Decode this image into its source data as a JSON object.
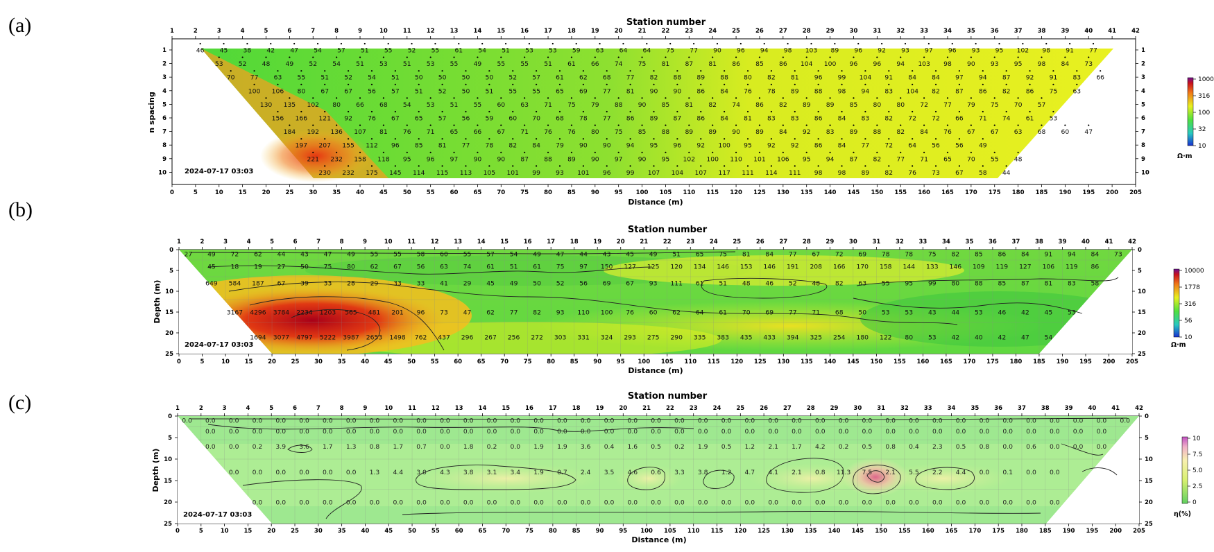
{
  "figure": {
    "panel_labels": [
      "(a)",
      "(b)",
      "(c)"
    ]
  },
  "chart_data": [
    {
      "type": "heatmap",
      "panel": "(a)",
      "title": "Station number",
      "xlabel": "Distance (m)",
      "ylabel": "n spacing",
      "timestamp": "2024-07-17 03:03",
      "x_range": [
        0,
        205
      ],
      "y_range": [
        1,
        10
      ],
      "station_spacing_m": 5,
      "stations": [
        1,
        42
      ],
      "colorbar": {
        "unit": "Ω·m",
        "ticks": [
          "1000",
          "316",
          "100",
          "32",
          "10"
        ],
        "scale": "log"
      },
      "rows": [
        {
          "n": 1,
          "start_station": 2,
          "values": [
            46,
            45,
            38,
            42,
            47,
            54,
            57,
            51,
            55,
            52,
            55,
            61,
            54,
            51,
            53,
            53,
            59,
            63,
            64,
            64,
            75,
            77,
            90,
            96,
            94,
            98,
            103,
            89,
            96,
            92,
            93,
            97,
            96,
            93,
            95,
            102,
            98,
            91,
            77
          ]
        },
        {
          "n": 2,
          "start_station": 2.5,
          "values": [
            53,
            52,
            48,
            49,
            52,
            54,
            51,
            53,
            51,
            53,
            55,
            49,
            55,
            55,
            51,
            61,
            66,
            74,
            75,
            81,
            87,
            81,
            86,
            85,
            86,
            104,
            100,
            96,
            96,
            94,
            103,
            98,
            90,
            93,
            95,
            98,
            84,
            73
          ]
        },
        {
          "n": 3,
          "start_station": 3,
          "values": [
            70,
            77,
            63,
            55,
            51,
            52,
            54,
            51,
            50,
            50,
            50,
            50,
            52,
            57,
            61,
            62,
            68,
            77,
            82,
            88,
            89,
            88,
            80,
            82,
            81,
            96,
            99,
            104,
            91,
            84,
            84,
            97,
            94,
            87,
            92,
            91,
            83,
            66
          ]
        },
        {
          "n": 4,
          "start_station": 4,
          "values": [
            100,
            106,
            80,
            67,
            67,
            56,
            57,
            51,
            52,
            50,
            51,
            55,
            55,
            65,
            69,
            77,
            81,
            90,
            90,
            86,
            84,
            76,
            78,
            89,
            88,
            98,
            94,
            83,
            104,
            82,
            87,
            86,
            82,
            86,
            75,
            63
          ]
        },
        {
          "n": 5,
          "start_station": 4.5,
          "values": [
            130,
            135,
            102,
            80,
            66,
            68,
            54,
            53,
            51,
            55,
            60,
            63,
            71,
            75,
            79,
            88,
            90,
            85,
            81,
            82,
            74,
            86,
            82,
            89,
            89,
            85,
            80,
            80,
            72,
            77,
            79,
            75,
            70,
            57
          ]
        },
        {
          "n": 6,
          "start_station": 5,
          "values": [
            156,
            166,
            121,
            92,
            76,
            67,
            65,
            57,
            56,
            59,
            60,
            70,
            68,
            78,
            77,
            86,
            89,
            87,
            86,
            84,
            81,
            83,
            83,
            86,
            84,
            83,
            82,
            72,
            72,
            66,
            71,
            74,
            61,
            53
          ]
        },
        {
          "n": 7,
          "start_station": 5.5,
          "values": [
            184,
            192,
            136,
            107,
            81,
            76,
            71,
            65,
            66,
            67,
            71,
            76,
            76,
            80,
            75,
            85,
            88,
            89,
            89,
            90,
            89,
            84,
            92,
            83,
            89,
            88,
            82,
            84,
            76,
            67,
            67,
            63,
            68,
            60,
            47
          ]
        },
        {
          "n": 8,
          "start_station": 6,
          "values": [
            197,
            207,
            155,
            112,
            96,
            85,
            81,
            77,
            78,
            82,
            84,
            79,
            90,
            90,
            94,
            95,
            96,
            92,
            100,
            95,
            92,
            92,
            86,
            84,
            77,
            72,
            64,
            56,
            56,
            49
          ]
        },
        {
          "n": 9,
          "start_station": 6.5,
          "values": [
            221,
            232,
            158,
            118,
            95,
            96,
            97,
            90,
            90,
            87,
            88,
            89,
            90,
            97,
            90,
            95,
            102,
            100,
            110,
            101,
            106,
            95,
            94,
            87,
            82,
            77,
            71,
            65,
            70,
            55,
            48
          ]
        },
        {
          "n": 10,
          "start_station": 7,
          "values": [
            230,
            232,
            175,
            145,
            114,
            115,
            113,
            105,
            101,
            99,
            93,
            101,
            96,
            99,
            107,
            104,
            107,
            117,
            111,
            114,
            111,
            98,
            98,
            89,
            82,
            76,
            73,
            67,
            58,
            44
          ]
        }
      ]
    },
    {
      "type": "heatmap",
      "panel": "(b)",
      "title": "Station number",
      "xlabel": "Distance (m)",
      "ylabel": "Depth (m)",
      "timestamp": "2024-07-17 03:03",
      "x_range": [
        0,
        205
      ],
      "y_range": [
        0,
        25
      ],
      "colorbar": {
        "unit": "Ω·m",
        "ticks": [
          "10000",
          "1778",
          "316",
          "56",
          "10"
        ],
        "scale": "log"
      },
      "rows": [
        {
          "depth": 1,
          "start_x": 2,
          "values": [
            27,
            49,
            72,
            62,
            44,
            43,
            47,
            49,
            55,
            55,
            58,
            60,
            55,
            57,
            54,
            49,
            47,
            44,
            43,
            45,
            49,
            51,
            65,
            75,
            81,
            84,
            77,
            67,
            72,
            69,
            78,
            78,
            75,
            82,
            85,
            86,
            84,
            91,
            94,
            84,
            73
          ]
        },
        {
          "depth": 4,
          "start_x": 7,
          "values": [
            45,
            18,
            19,
            27,
            50,
            75,
            80,
            62,
            67,
            56,
            63,
            74,
            61,
            51,
            61,
            75,
            97,
            150,
            127,
            125,
            120,
            134,
            146,
            153,
            146,
            191,
            208,
            166,
            170,
            158,
            144,
            133,
            146,
            109,
            119,
            127,
            106,
            119,
            86
          ]
        },
        {
          "depth": 8,
          "start_x": 7,
          "values": [
            649,
            584,
            187,
            67,
            39,
            33,
            28,
            29,
            33,
            33,
            41,
            29,
            45,
            49,
            50,
            52,
            56,
            69,
            67,
            93,
            111,
            61,
            51,
            48,
            46,
            52,
            48,
            82,
            63,
            55,
            95,
            99,
            80,
            88,
            85,
            87,
            81,
            83,
            58
          ]
        },
        {
          "depth": 15,
          "start_x": 12,
          "values": [
            3167,
            4296,
            3784,
            2234,
            1203,
            565,
            481,
            201,
            96,
            73,
            47,
            62,
            77,
            82,
            93,
            110,
            100,
            76,
            60,
            62,
            64,
            61,
            70,
            69,
            77,
            71,
            68,
            50,
            53,
            53,
            43,
            44,
            53,
            46,
            42,
            45,
            53
          ]
        },
        {
          "depth": 21,
          "start_x": 17,
          "values": [
            1694,
            3077,
            4797,
            5222,
            3987,
            2653,
            1498,
            762,
            437,
            296,
            267,
            256,
            272,
            303,
            331,
            324,
            293,
            275,
            290,
            335,
            383,
            435,
            433,
            394,
            325,
            254,
            180,
            122,
            80,
            53,
            42,
            40,
            42,
            47,
            54
          ]
        }
      ]
    },
    {
      "type": "heatmap",
      "panel": "(c)",
      "title": "Station number",
      "xlabel": "Distance (m)",
      "ylabel": "Depth (m)",
      "timestamp": "2024-07-17 03:03",
      "x_range": [
        0,
        205
      ],
      "y_range": [
        0,
        25
      ],
      "colorbar": {
        "unit": "η(%)",
        "ticks": [
          "10",
          "7.5",
          "5.0",
          "2.5",
          "0"
        ],
        "scale": "linear"
      },
      "rows": [
        {
          "depth": 1,
          "start_x": 2,
          "values": [
            "0.0",
            "0.0",
            "0.0",
            "0.0",
            "0.0",
            "0.0",
            "0.0",
            "0.0",
            "0.0",
            "0.0",
            "0.0",
            "0.0",
            "0.0",
            "0.0",
            "0.0",
            "0.0",
            "0.0",
            "0.0",
            "0.0",
            "0.0",
            "0.0",
            "0.0",
            "0.0",
            "0.0",
            "0.0",
            "0.0",
            "0.0",
            "0.0",
            "0.0",
            "0.0",
            "0.0",
            "0.0",
            "0.0",
            "0.0",
            "0.0",
            "0.0",
            "0.0",
            "0.0",
            "0.0",
            "0.0",
            "0.0"
          ]
        },
        {
          "depth": 3.5,
          "start_x": 7,
          "values": [
            "0.0",
            "0.0",
            "0.0",
            "0.0",
            "0.0",
            "0.0",
            "0.0",
            "0.0",
            "0.0",
            "0.0",
            "0.0",
            "0.0",
            "0.0",
            "0.0",
            "0.0",
            "0.0",
            "0.0",
            "0.0",
            "0.0",
            "0.0",
            "0.0",
            "0.0",
            "0.0",
            "0.0",
            "0.0",
            "0.0",
            "0.0",
            "0.0",
            "0.0",
            "0.0",
            "0.0",
            "0.0",
            "0.0",
            "0.0",
            "0.0",
            "0.0",
            "0.0",
            "0.0",
            "0.0"
          ]
        },
        {
          "depth": 7,
          "start_x": 7,
          "values": [
            "0.0",
            "0.0",
            "0.2",
            "3.9",
            "3.6",
            "1.7",
            "1.3",
            "0.8",
            "1.7",
            "0.7",
            "0.0",
            "1.8",
            "0.2",
            "0.0",
            "1.9",
            "1.9",
            "3.6",
            "0.4",
            "1.6",
            "0.5",
            "0.2",
            "1.9",
            "0.5",
            "1.2",
            "2.1",
            "1.7",
            "4.2",
            "0.2",
            "0.5",
            "0.8",
            "0.4",
            "2.3",
            "0.5",
            "0.8",
            "0.0",
            "0.6",
            "0.0",
            "0.0",
            "0.0"
          ]
        },
        {
          "depth": 13,
          "start_x": 12,
          "values": [
            "0.0",
            "0.0",
            "0.0",
            "0.0",
            "0.0",
            "0.0",
            "1.3",
            "4.4",
            "3.0",
            "4.3",
            "3.8",
            "3.1",
            "3.4",
            "1.9",
            "0.7",
            "2.4",
            "3.5",
            "4.6",
            "0.6",
            "3.3",
            "3.8",
            "1.2",
            "4.7",
            "4.1",
            "2.1",
            "0.8",
            "11.3",
            "7.5",
            "2.1",
            "5.5",
            "2.2",
            "4.4",
            "0.0",
            "0.1",
            "0.0",
            "0.0"
          ]
        },
        {
          "depth": 20,
          "start_x": 17,
          "values": [
            "0.0",
            "0.0",
            "0.0",
            "0.0",
            "0.0",
            "0.0",
            "0.0",
            "0.0",
            "0.0",
            "0.0",
            "0.0",
            "0.0",
            "0.0",
            "0.0",
            "0.0",
            "0.0",
            "0.0",
            "0.0",
            "0.0",
            "0.0",
            "0.0",
            "0.0",
            "0.0",
            "0.0",
            "0.0",
            "0.0",
            "0.0",
            "0.0",
            "0.0",
            "0.0",
            "0.0",
            "0.0",
            "0.0",
            "0.0",
            "0.0"
          ]
        }
      ]
    }
  ],
  "colors": {
    "resistivity_low": "#1a3dd6",
    "resistivity_mid": "#7fe030",
    "resistivity_high": "#c8101e",
    "chargeability_low": "#90ee80",
    "chargeability_high": "#e84a8a"
  }
}
